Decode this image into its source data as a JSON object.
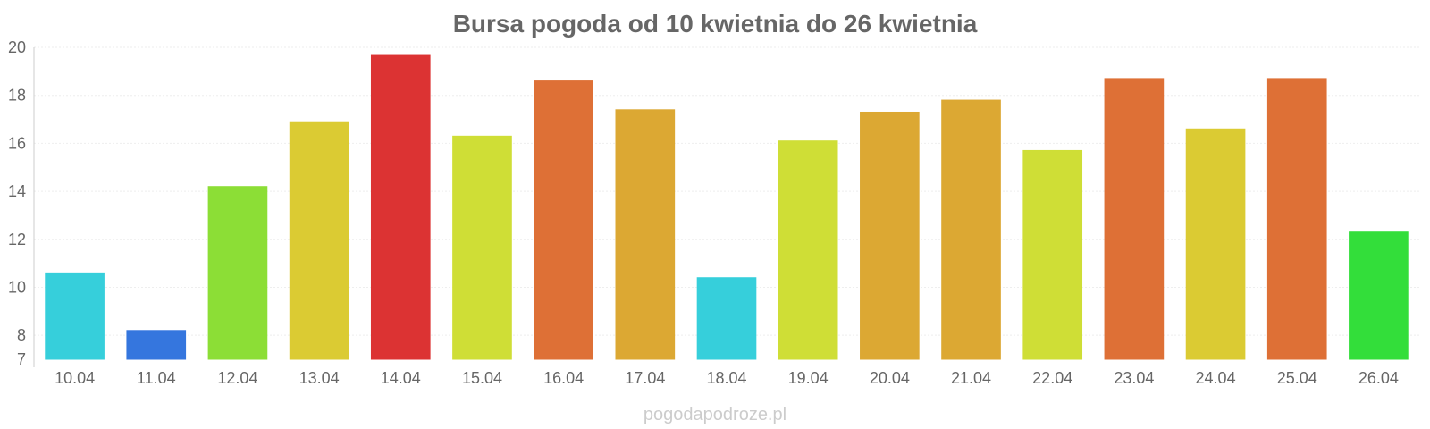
{
  "chart_data": {
    "type": "bar",
    "title": "Bursa pogoda od 10 kwietnia do 26 kwietnia",
    "xlabel": "",
    "ylabel": "",
    "categories": [
      "10.04",
      "11.04",
      "12.04",
      "13.04",
      "14.04",
      "15.04",
      "16.04",
      "17.04",
      "18.04",
      "19.04",
      "20.04",
      "21.04",
      "22.04",
      "23.04",
      "24.04",
      "25.04",
      "26.04"
    ],
    "values": [
      10.6,
      8.2,
      14.2,
      16.9,
      19.7,
      16.3,
      18.6,
      17.4,
      10.4,
      16.1,
      17.3,
      17.8,
      15.7,
      18.7,
      16.6,
      18.7,
      12.3
    ],
    "colors": [
      "#36cfdb",
      "#3576de",
      "#8cde36",
      "#dbcb33",
      "#dc3333",
      "#cfde36",
      "#de7036",
      "#dca833",
      "#36cfdb",
      "#cfde36",
      "#dca833",
      "#dca833",
      "#cfde36",
      "#de7036",
      "#dbcb33",
      "#de7036",
      "#33de3a"
    ],
    "ylim": [
      7,
      20
    ],
    "yticks": [
      7,
      8,
      10,
      12,
      14,
      16,
      18,
      20
    ],
    "grid": true,
    "legend": "none"
  },
  "watermark": "pogodapodroze.pl"
}
